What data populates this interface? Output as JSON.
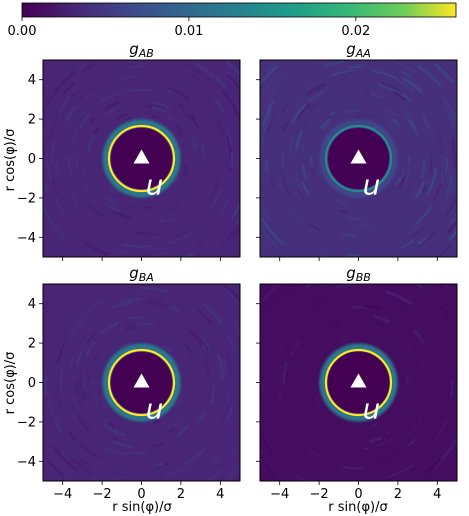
{
  "chart_data": {
    "type": "heatmap",
    "colorbar": {
      "colormap": "viridis",
      "range": [
        0.0,
        0.026
      ],
      "ticks": [
        0.0,
        0.01,
        0.02
      ],
      "tick_labels": [
        "0.00",
        "0.01",
        "0.02"
      ]
    },
    "x_ticks": [
      -4,
      -2,
      0,
      2,
      4
    ],
    "y_ticks": [
      -4,
      -2,
      0,
      2,
      4
    ],
    "x_tick_labels": [
      "−4",
      "−2",
      "0",
      "2",
      "4"
    ],
    "y_tick_labels": [
      "−4",
      "−2",
      "0",
      "2",
      "4"
    ],
    "xlim": [
      -5,
      5
    ],
    "ylim": [
      -5,
      5
    ],
    "xlabel": "r sin(φ)/σ",
    "ylabel": "r cos(φ)/σ",
    "panels": [
      {
        "title_base": "g",
        "title_sub": "AB",
        "ring_radius": 1.6,
        "ring_peak": 0.026,
        "background": 0.003,
        "marker_label": "u"
      },
      {
        "title_base": "g",
        "title_sub": "AA",
        "ring_radius": 1.6,
        "ring_peak": 0.014,
        "background": 0.004,
        "marker_label": "u"
      },
      {
        "title_base": "g",
        "title_sub": "BA",
        "ring_radius": 1.6,
        "ring_peak": 0.026,
        "background": 0.003,
        "marker_label": "u"
      },
      {
        "title_base": "g",
        "title_sub": "BB",
        "ring_radius": 1.6,
        "ring_peak": 0.026,
        "background": 0.001,
        "marker_label": "u"
      }
    ],
    "exclusion_value": 0.0
  }
}
